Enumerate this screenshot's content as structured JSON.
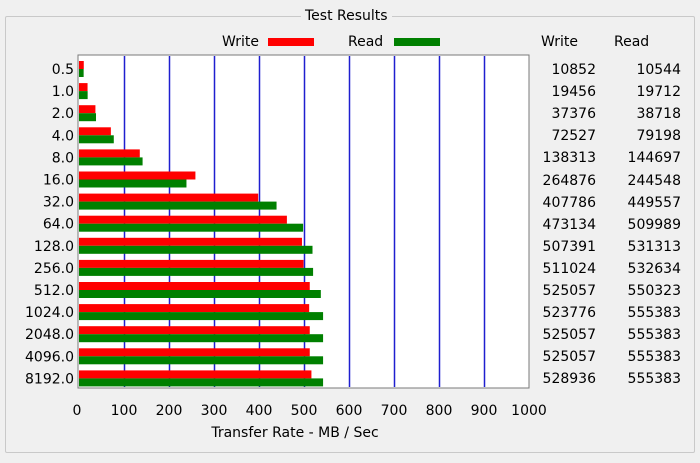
{
  "group_title": "Test Results",
  "legend": {
    "write_label": "Write",
    "read_label": "Read",
    "write_color": "#ff0000",
    "read_color": "#008000"
  },
  "table_headers": {
    "write": "Write",
    "read": "Read"
  },
  "colors": {
    "grid": "#1f1fcf",
    "background": "#f0f0f0",
    "plot_bg": "#ffffff"
  },
  "chart_data": {
    "type": "bar",
    "orientation": "horizontal",
    "categories": [
      "0.5",
      "1.0",
      "2.0",
      "4.0",
      "8.0",
      "16.0",
      "32.0",
      "64.0",
      "128.0",
      "256.0",
      "512.0",
      "1024.0",
      "2048.0",
      "4096.0",
      "8192.0"
    ],
    "series": [
      {
        "name": "Write",
        "values": [
          10.6,
          19.0,
          36.5,
          70.8,
          135.1,
          258.7,
          398.2,
          462.0,
          495.5,
          499.0,
          512.8,
          511.5,
          512.8,
          512.8,
          516.5
        ]
      },
      {
        "name": "Read",
        "values": [
          10.3,
          19.2,
          37.8,
          77.3,
          141.3,
          238.8,
          439.0,
          498.0,
          518.9,
          520.2,
          537.4,
          542.4,
          542.4,
          542.4,
          542.4
        ]
      }
    ],
    "xlabel": "Transfer Rate - MB / Sec",
    "ylabel": "",
    "xlim": [
      0,
      1000
    ],
    "xticks": [
      0,
      100,
      200,
      300,
      400,
      500,
      600,
      700,
      800,
      900,
      1000
    ],
    "grid": true,
    "legend_position": "top"
  },
  "table": {
    "rows": [
      {
        "write": "10852",
        "read": "10544"
      },
      {
        "write": "19456",
        "read": "19712"
      },
      {
        "write": "37376",
        "read": "38718"
      },
      {
        "write": "72527",
        "read": "79198"
      },
      {
        "write": "138313",
        "read": "144697"
      },
      {
        "write": "264876",
        "read": "244548"
      },
      {
        "write": "407786",
        "read": "449557"
      },
      {
        "write": "473134",
        "read": "509989"
      },
      {
        "write": "507391",
        "read": "531313"
      },
      {
        "write": "511024",
        "read": "532634"
      },
      {
        "write": "525057",
        "read": "550323"
      },
      {
        "write": "523776",
        "read": "555383"
      },
      {
        "write": "525057",
        "read": "555383"
      },
      {
        "write": "525057",
        "read": "555383"
      },
      {
        "write": "528936",
        "read": "555383"
      }
    ]
  }
}
